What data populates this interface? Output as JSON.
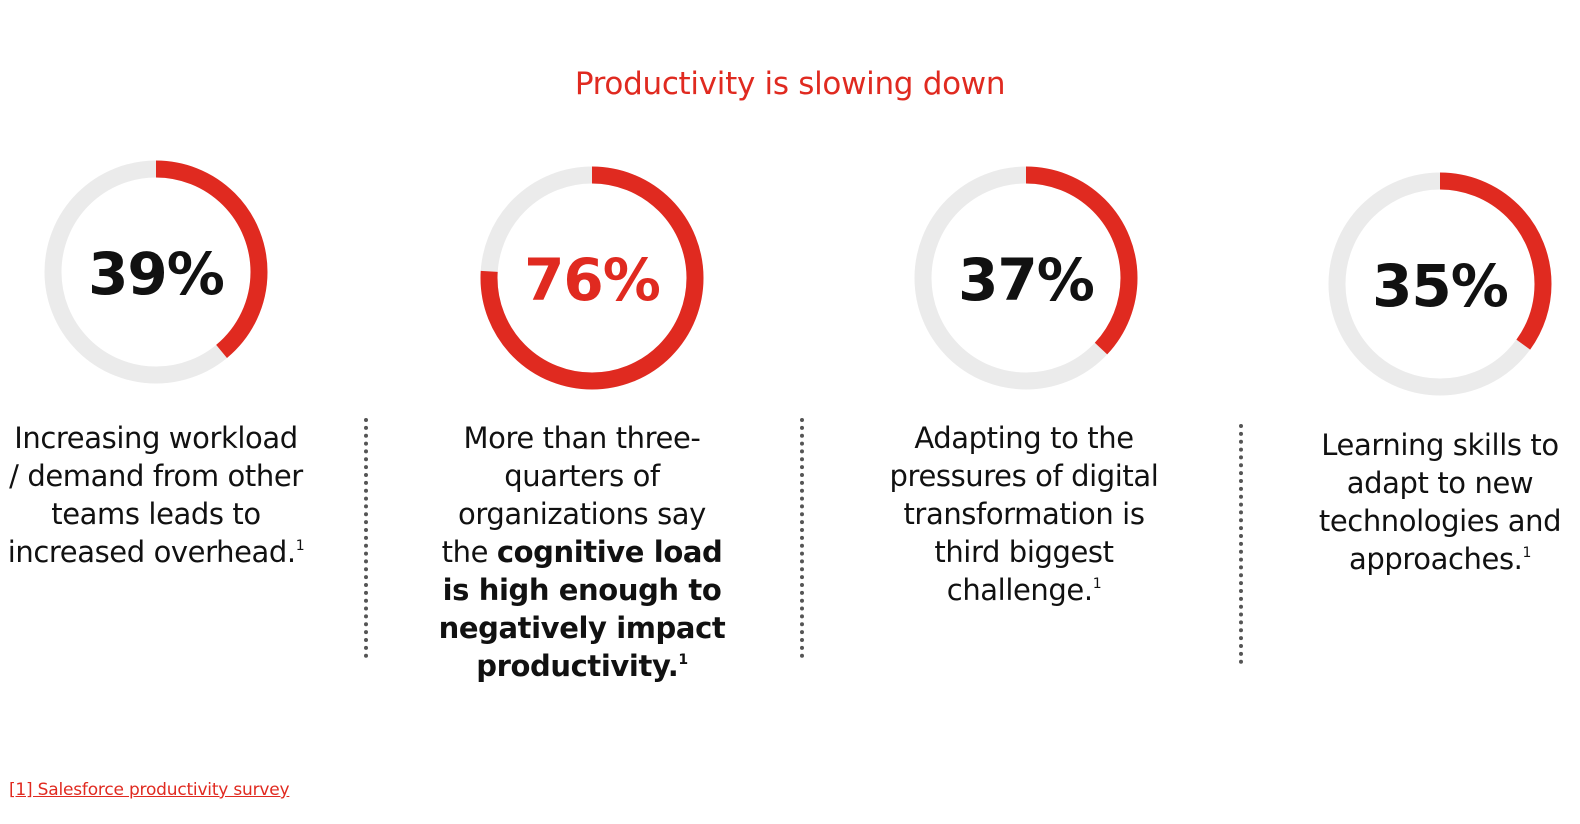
{
  "title": "Productivity is slowing down",
  "colors": {
    "accent": "#e02a20",
    "track": "#ebebeb",
    "text": "#111111"
  },
  "chart_data": {
    "type": "donut",
    "title": "Productivity is slowing down",
    "items": [
      {
        "value": 39,
        "label": "39%",
        "highlight": false,
        "text_parts": [
          {
            "text": "Increasing workload / demand from other teams leads to increased overhead.",
            "bold": false
          }
        ],
        "footnote_ref": "1"
      },
      {
        "value": 76,
        "label": "76%",
        "highlight": true,
        "text_parts": [
          {
            "text": "More than three-quarters of organizations say the ",
            "bold": false
          },
          {
            "text": "cognitive load is high enough to negatively impact productivity.",
            "bold": true
          }
        ],
        "footnote_ref": "1"
      },
      {
        "value": 37,
        "label": "37%",
        "highlight": false,
        "text_parts": [
          {
            "text": "Adapting to the pressures of digital transformation is third biggest challenge.",
            "bold": false
          }
        ],
        "footnote_ref": "1"
      },
      {
        "value": 35,
        "label": "35%",
        "highlight": false,
        "text_parts": [
          {
            "text": "Learning skills to adapt to new technologies and approaches.",
            "bold": false
          }
        ],
        "footnote_ref": "1"
      }
    ]
  },
  "footnote": "[1] Salesforce productivity survey"
}
